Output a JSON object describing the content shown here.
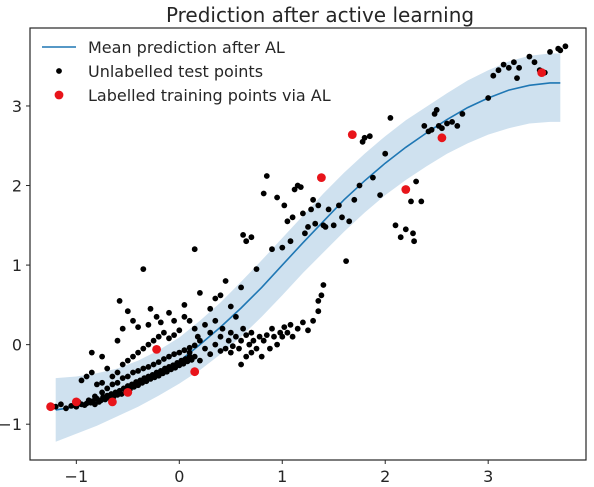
{
  "chart_data": {
    "type": "scatter",
    "title": "Prediction after active learning",
    "xlabel": "",
    "ylabel": "",
    "xlim": [
      -1.45,
      3.95
    ],
    "ylim": [
      -1.45,
      3.98
    ],
    "grid": false,
    "legend_position": "top-left",
    "x_ticks": [
      -1,
      0,
      1,
      2,
      3
    ],
    "x_tick_labels": [
      "−1",
      "0",
      "1",
      "2",
      "3"
    ],
    "y_ticks": [
      -1,
      0,
      1,
      2,
      3
    ],
    "y_tick_labels": [
      "−1",
      "0",
      "1",
      "2",
      "3"
    ],
    "colors": {
      "mean_line": "#1f77b4",
      "band": "#cfe1ef",
      "test_points": "#000000",
      "training_points": "#e8141a",
      "axes": "#262626"
    },
    "series": [
      {
        "name": "Mean prediction after AL",
        "kind": "line",
        "x": [
          -1.2,
          -1.0,
          -0.8,
          -0.6,
          -0.4,
          -0.2,
          0.0,
          0.2,
          0.4,
          0.6,
          0.8,
          1.0,
          1.2,
          1.4,
          1.6,
          1.8,
          2.0,
          2.2,
          2.4,
          2.6,
          2.8,
          3.0,
          3.2,
          3.4,
          3.6,
          3.7
        ],
        "y": [
          -0.82,
          -0.78,
          -0.72,
          -0.63,
          -0.52,
          -0.38,
          -0.21,
          0.0,
          0.22,
          0.46,
          0.72,
          1.0,
          1.28,
          1.55,
          1.82,
          2.06,
          2.28,
          2.48,
          2.66,
          2.83,
          2.98,
          3.1,
          3.2,
          3.26,
          3.29,
          3.29
        ]
      },
      {
        "name": "",
        "kind": "band",
        "x": [
          -1.2,
          -1.0,
          -0.8,
          -0.6,
          -0.4,
          -0.2,
          0.0,
          0.2,
          0.4,
          0.6,
          0.8,
          1.0,
          1.2,
          1.4,
          1.6,
          1.8,
          2.0,
          2.2,
          2.4,
          2.6,
          2.8,
          3.0,
          3.2,
          3.4,
          3.6,
          3.7
        ],
        "lower": [
          -1.22,
          -1.12,
          -1.02,
          -0.9,
          -0.78,
          -0.64,
          -0.49,
          -0.32,
          -0.12,
          0.1,
          0.35,
          0.62,
          0.9,
          1.16,
          1.42,
          1.66,
          1.88,
          2.07,
          2.24,
          2.4,
          2.53,
          2.64,
          2.72,
          2.78,
          2.8,
          2.8
        ],
        "upper": [
          -0.42,
          -0.4,
          -0.36,
          -0.3,
          -0.2,
          -0.07,
          0.09,
          0.3,
          0.53,
          0.79,
          1.06,
          1.34,
          1.62,
          1.9,
          2.16,
          2.4,
          2.62,
          2.82,
          2.99,
          3.16,
          3.32,
          3.45,
          3.56,
          3.63,
          3.66,
          3.66
        ]
      },
      {
        "name": "Unlabelled test points",
        "kind": "scatter",
        "points": [
          [
            -1.2,
            -0.78
          ],
          [
            -1.15,
            -0.75
          ],
          [
            -1.1,
            -0.8
          ],
          [
            -1.05,
            -0.77
          ],
          [
            -1.0,
            -0.78
          ],
          [
            -0.98,
            -0.72
          ],
          [
            -0.95,
            -0.75
          ],
          [
            -0.92,
            -0.76
          ],
          [
            -0.9,
            -0.74
          ],
          [
            -0.88,
            -0.7
          ],
          [
            -0.86,
            -0.73
          ],
          [
            -0.84,
            -0.71
          ],
          [
            -0.82,
            -0.75
          ],
          [
            -0.8,
            -0.68
          ],
          [
            -0.78,
            -0.72
          ],
          [
            -0.76,
            -0.7
          ],
          [
            -0.74,
            -0.66
          ],
          [
            -0.72,
            -0.69
          ],
          [
            -0.7,
            -0.64
          ],
          [
            -0.68,
            -0.67
          ],
          [
            -0.66,
            -0.62
          ],
          [
            -0.64,
            -0.66
          ],
          [
            -0.62,
            -0.6
          ],
          [
            -0.6,
            -0.63
          ],
          [
            -0.58,
            -0.58
          ],
          [
            -0.56,
            -0.62
          ],
          [
            -0.54,
            -0.55
          ],
          [
            -0.52,
            -0.59
          ],
          [
            -0.5,
            -0.52
          ],
          [
            -0.48,
            -0.56
          ],
          [
            -0.46,
            -0.5
          ],
          [
            -0.44,
            -0.53
          ],
          [
            -0.42,
            -0.47
          ],
          [
            -0.4,
            -0.51
          ],
          [
            -0.38,
            -0.45
          ],
          [
            -0.36,
            -0.48
          ],
          [
            -0.34,
            -0.42
          ],
          [
            -0.32,
            -0.46
          ],
          [
            -0.3,
            -0.4
          ],
          [
            -0.28,
            -0.43
          ],
          [
            -0.26,
            -0.38
          ],
          [
            -0.24,
            -0.41
          ],
          [
            -0.22,
            -0.35
          ],
          [
            -0.2,
            -0.39
          ],
          [
            -0.18,
            -0.33
          ],
          [
            -0.16,
            -0.36
          ],
          [
            -0.14,
            -0.3
          ],
          [
            -0.12,
            -0.34
          ],
          [
            -0.1,
            -0.28
          ],
          [
            -0.08,
            -0.31
          ],
          [
            -0.06,
            -0.26
          ],
          [
            -0.04,
            -0.29
          ],
          [
            -0.02,
            -0.23
          ],
          [
            0.0,
            -0.26
          ],
          [
            0.02,
            -0.2
          ],
          [
            0.04,
            -0.24
          ],
          [
            0.06,
            -0.18
          ],
          [
            0.08,
            -0.21
          ],
          [
            0.1,
            -0.15
          ],
          [
            0.12,
            -0.19
          ],
          [
            -0.82,
            -0.65
          ],
          [
            -0.75,
            -0.6
          ],
          [
            -0.7,
            -0.55
          ],
          [
            -0.65,
            -0.5
          ],
          [
            -0.6,
            -0.48
          ],
          [
            -0.55,
            -0.42
          ],
          [
            -0.5,
            -0.4
          ],
          [
            -0.45,
            -0.35
          ],
          [
            -0.4,
            -0.33
          ],
          [
            -0.35,
            -0.3
          ],
          [
            -0.3,
            -0.28
          ],
          [
            -0.25,
            -0.25
          ],
          [
            -0.2,
            -0.22
          ],
          [
            -0.15,
            -0.18
          ],
          [
            -0.1,
            -0.15
          ],
          [
            -0.05,
            -0.12
          ],
          [
            0.0,
            -0.1
          ],
          [
            0.05,
            -0.07
          ],
          [
            0.1,
            -0.04
          ],
          [
            0.15,
            -0.01
          ],
          [
            -0.95,
            -0.45
          ],
          [
            -0.9,
            -0.4
          ],
          [
            -0.85,
            -0.35
          ],
          [
            -0.8,
            -0.5
          ],
          [
            -0.75,
            -0.48
          ],
          [
            -0.7,
            -0.3
          ],
          [
            -0.65,
            -0.4
          ],
          [
            -0.6,
            -0.35
          ],
          [
            -0.55,
            -0.25
          ],
          [
            -0.5,
            -0.2
          ],
          [
            -0.45,
            -0.15
          ],
          [
            -0.4,
            -0.1
          ],
          [
            -0.35,
            -0.05
          ],
          [
            -0.3,
            0.0
          ],
          [
            -0.25,
            0.05
          ],
          [
            -0.2,
            0.1
          ],
          [
            -0.15,
            0.15
          ],
          [
            -0.1,
            0.08
          ],
          [
            -0.05,
            0.12
          ],
          [
            0.0,
            0.18
          ],
          [
            -0.85,
            -0.1
          ],
          [
            -0.75,
            -0.15
          ],
          [
            -0.6,
            0.05
          ],
          [
            -0.55,
            0.2
          ],
          [
            -0.58,
            0.55
          ],
          [
            -0.5,
            0.42
          ],
          [
            -0.45,
            0.3
          ],
          [
            -0.4,
            0.22
          ],
          [
            -0.35,
            0.95
          ],
          [
            -0.3,
            0.25
          ],
          [
            -0.28,
            0.45
          ],
          [
            -0.22,
            0.35
          ],
          [
            -0.18,
            0.28
          ],
          [
            -0.1,
            0.4
          ],
          [
            -0.05,
            0.3
          ],
          [
            0.05,
            0.5
          ],
          [
            0.1,
            0.3
          ],
          [
            0.15,
            0.2
          ],
          [
            0.18,
            0.1
          ],
          [
            0.2,
            0.05
          ],
          [
            0.05,
            0.35
          ],
          [
            0.1,
            -0.1
          ],
          [
            0.15,
            -0.15
          ],
          [
            0.2,
            -0.2
          ],
          [
            0.25,
            -0.05
          ],
          [
            0.25,
            0.25
          ],
          [
            0.3,
            0.15
          ],
          [
            0.3,
            -0.12
          ],
          [
            0.35,
            0.0
          ],
          [
            0.35,
            0.3
          ],
          [
            0.4,
            0.1
          ],
          [
            0.4,
            -0.08
          ],
          [
            0.42,
            0.2
          ],
          [
            0.45,
            -0.05
          ],
          [
            0.48,
            0.05
          ],
          [
            0.5,
            -0.1
          ],
          [
            0.5,
            0.15
          ],
          [
            0.52,
            -0.02
          ],
          [
            0.55,
            0.1
          ],
          [
            0.58,
            -0.05
          ],
          [
            0.6,
            -0.25
          ],
          [
            0.6,
            0.05
          ],
          [
            0.62,
            0.2
          ],
          [
            0.65,
            -0.15
          ],
          [
            0.65,
            0.12
          ],
          [
            0.68,
            0.0
          ],
          [
            0.7,
            -0.1
          ],
          [
            0.7,
            0.15
          ],
          [
            0.72,
            0.05
          ],
          [
            0.75,
            -0.05
          ],
          [
            0.78,
            0.1
          ],
          [
            0.8,
            -0.15
          ],
          [
            0.82,
            0.05
          ],
          [
            0.85,
            0.12
          ],
          [
            0.88,
            -0.05
          ],
          [
            0.9,
            0.2
          ],
          [
            0.92,
            0.1
          ],
          [
            0.95,
            0.0
          ],
          [
            0.98,
            0.15
          ],
          [
            1.0,
            0.1
          ],
          [
            1.02,
            0.22
          ],
          [
            1.05,
            0.15
          ],
          [
            1.08,
            0.25
          ],
          [
            1.1,
            0.1
          ],
          [
            1.15,
            0.2
          ],
          [
            1.2,
            0.28
          ],
          [
            1.25,
            0.18
          ],
          [
            1.3,
            0.3
          ],
          [
            1.35,
            0.42
          ],
          [
            1.35,
            0.55
          ],
          [
            1.38,
            0.62
          ],
          [
            1.4,
            0.75
          ],
          [
            0.15,
            1.2
          ],
          [
            0.2,
            0.65
          ],
          [
            0.3,
            0.45
          ],
          [
            0.35,
            0.58
          ],
          [
            0.4,
            0.62
          ],
          [
            0.45,
            0.8
          ],
          [
            0.5,
            0.48
          ],
          [
            0.55,
            0.35
          ],
          [
            0.6,
            0.72
          ],
          [
            0.62,
            1.38
          ],
          [
            0.65,
            1.3
          ],
          [
            0.7,
            1.35
          ],
          [
            0.75,
            0.95
          ],
          [
            0.82,
            1.9
          ],
          [
            0.85,
            2.12
          ],
          [
            0.9,
            1.2
          ],
          [
            0.95,
            1.85
          ],
          [
            1.0,
            1.22
          ],
          [
            1.02,
            1.75
          ],
          [
            1.05,
            1.55
          ],
          [
            1.08,
            1.3
          ],
          [
            1.1,
            1.6
          ],
          [
            1.12,
            1.95
          ],
          [
            1.15,
            2.0
          ],
          [
            1.18,
            1.98
          ],
          [
            1.2,
            1.65
          ],
          [
            1.22,
            1.4
          ],
          [
            1.25,
            1.48
          ],
          [
            1.28,
            1.7
          ],
          [
            1.3,
            1.82
          ],
          [
            1.32,
            1.52
          ],
          [
            1.35,
            1.75
          ],
          [
            1.4,
            1.5
          ],
          [
            1.42,
            1.48
          ],
          [
            1.45,
            1.7
          ],
          [
            1.5,
            1.5
          ],
          [
            1.55,
            1.75
          ],
          [
            1.58,
            1.6
          ],
          [
            1.62,
            1.05
          ],
          [
            1.65,
            1.55
          ],
          [
            1.7,
            1.82
          ],
          [
            1.75,
            2.0
          ],
          [
            1.78,
            2.55
          ],
          [
            1.8,
            2.6
          ],
          [
            1.85,
            2.62
          ],
          [
            1.88,
            2.1
          ],
          [
            1.95,
            1.88
          ],
          [
            2.0,
            2.4
          ],
          [
            2.05,
            2.85
          ],
          [
            2.1,
            1.5
          ],
          [
            2.15,
            1.35
          ],
          [
            2.2,
            1.45
          ],
          [
            2.25,
            1.8
          ],
          [
            2.27,
            1.4
          ],
          [
            2.28,
            1.3
          ],
          [
            2.3,
            2.05
          ],
          [
            2.35,
            1.8
          ],
          [
            2.38,
            2.75
          ],
          [
            2.42,
            2.68
          ],
          [
            2.45,
            2.7
          ],
          [
            2.48,
            2.9
          ],
          [
            2.5,
            2.95
          ],
          [
            2.52,
            2.75
          ],
          [
            2.55,
            2.72
          ],
          [
            2.6,
            2.78
          ],
          [
            2.65,
            2.8
          ],
          [
            2.7,
            2.75
          ],
          [
            2.75,
            2.9
          ],
          [
            3.0,
            3.1
          ],
          [
            3.05,
            3.38
          ],
          [
            3.1,
            3.45
          ],
          [
            3.15,
            3.52
          ],
          [
            3.2,
            3.48
          ],
          [
            3.25,
            3.55
          ],
          [
            3.28,
            3.35
          ],
          [
            3.3,
            3.48
          ],
          [
            3.4,
            3.62
          ],
          [
            3.45,
            3.55
          ],
          [
            3.5,
            3.45
          ],
          [
            3.55,
            3.42
          ],
          [
            3.6,
            3.68
          ],
          [
            3.68,
            3.72
          ],
          [
            3.7,
            3.7
          ],
          [
            3.75,
            3.75
          ]
        ]
      },
      {
        "name": "Labelled training points via AL",
        "kind": "scatter",
        "points": [
          [
            -1.25,
            -0.78
          ],
          [
            -1.0,
            -0.72
          ],
          [
            -0.65,
            -0.72
          ],
          [
            -0.5,
            -0.6
          ],
          [
            -0.22,
            -0.06
          ],
          [
            0.15,
            -0.34
          ],
          [
            1.38,
            2.1
          ],
          [
            1.68,
            2.64
          ],
          [
            2.2,
            1.95
          ],
          [
            2.55,
            2.6
          ],
          [
            3.52,
            3.42
          ]
        ]
      }
    ]
  }
}
